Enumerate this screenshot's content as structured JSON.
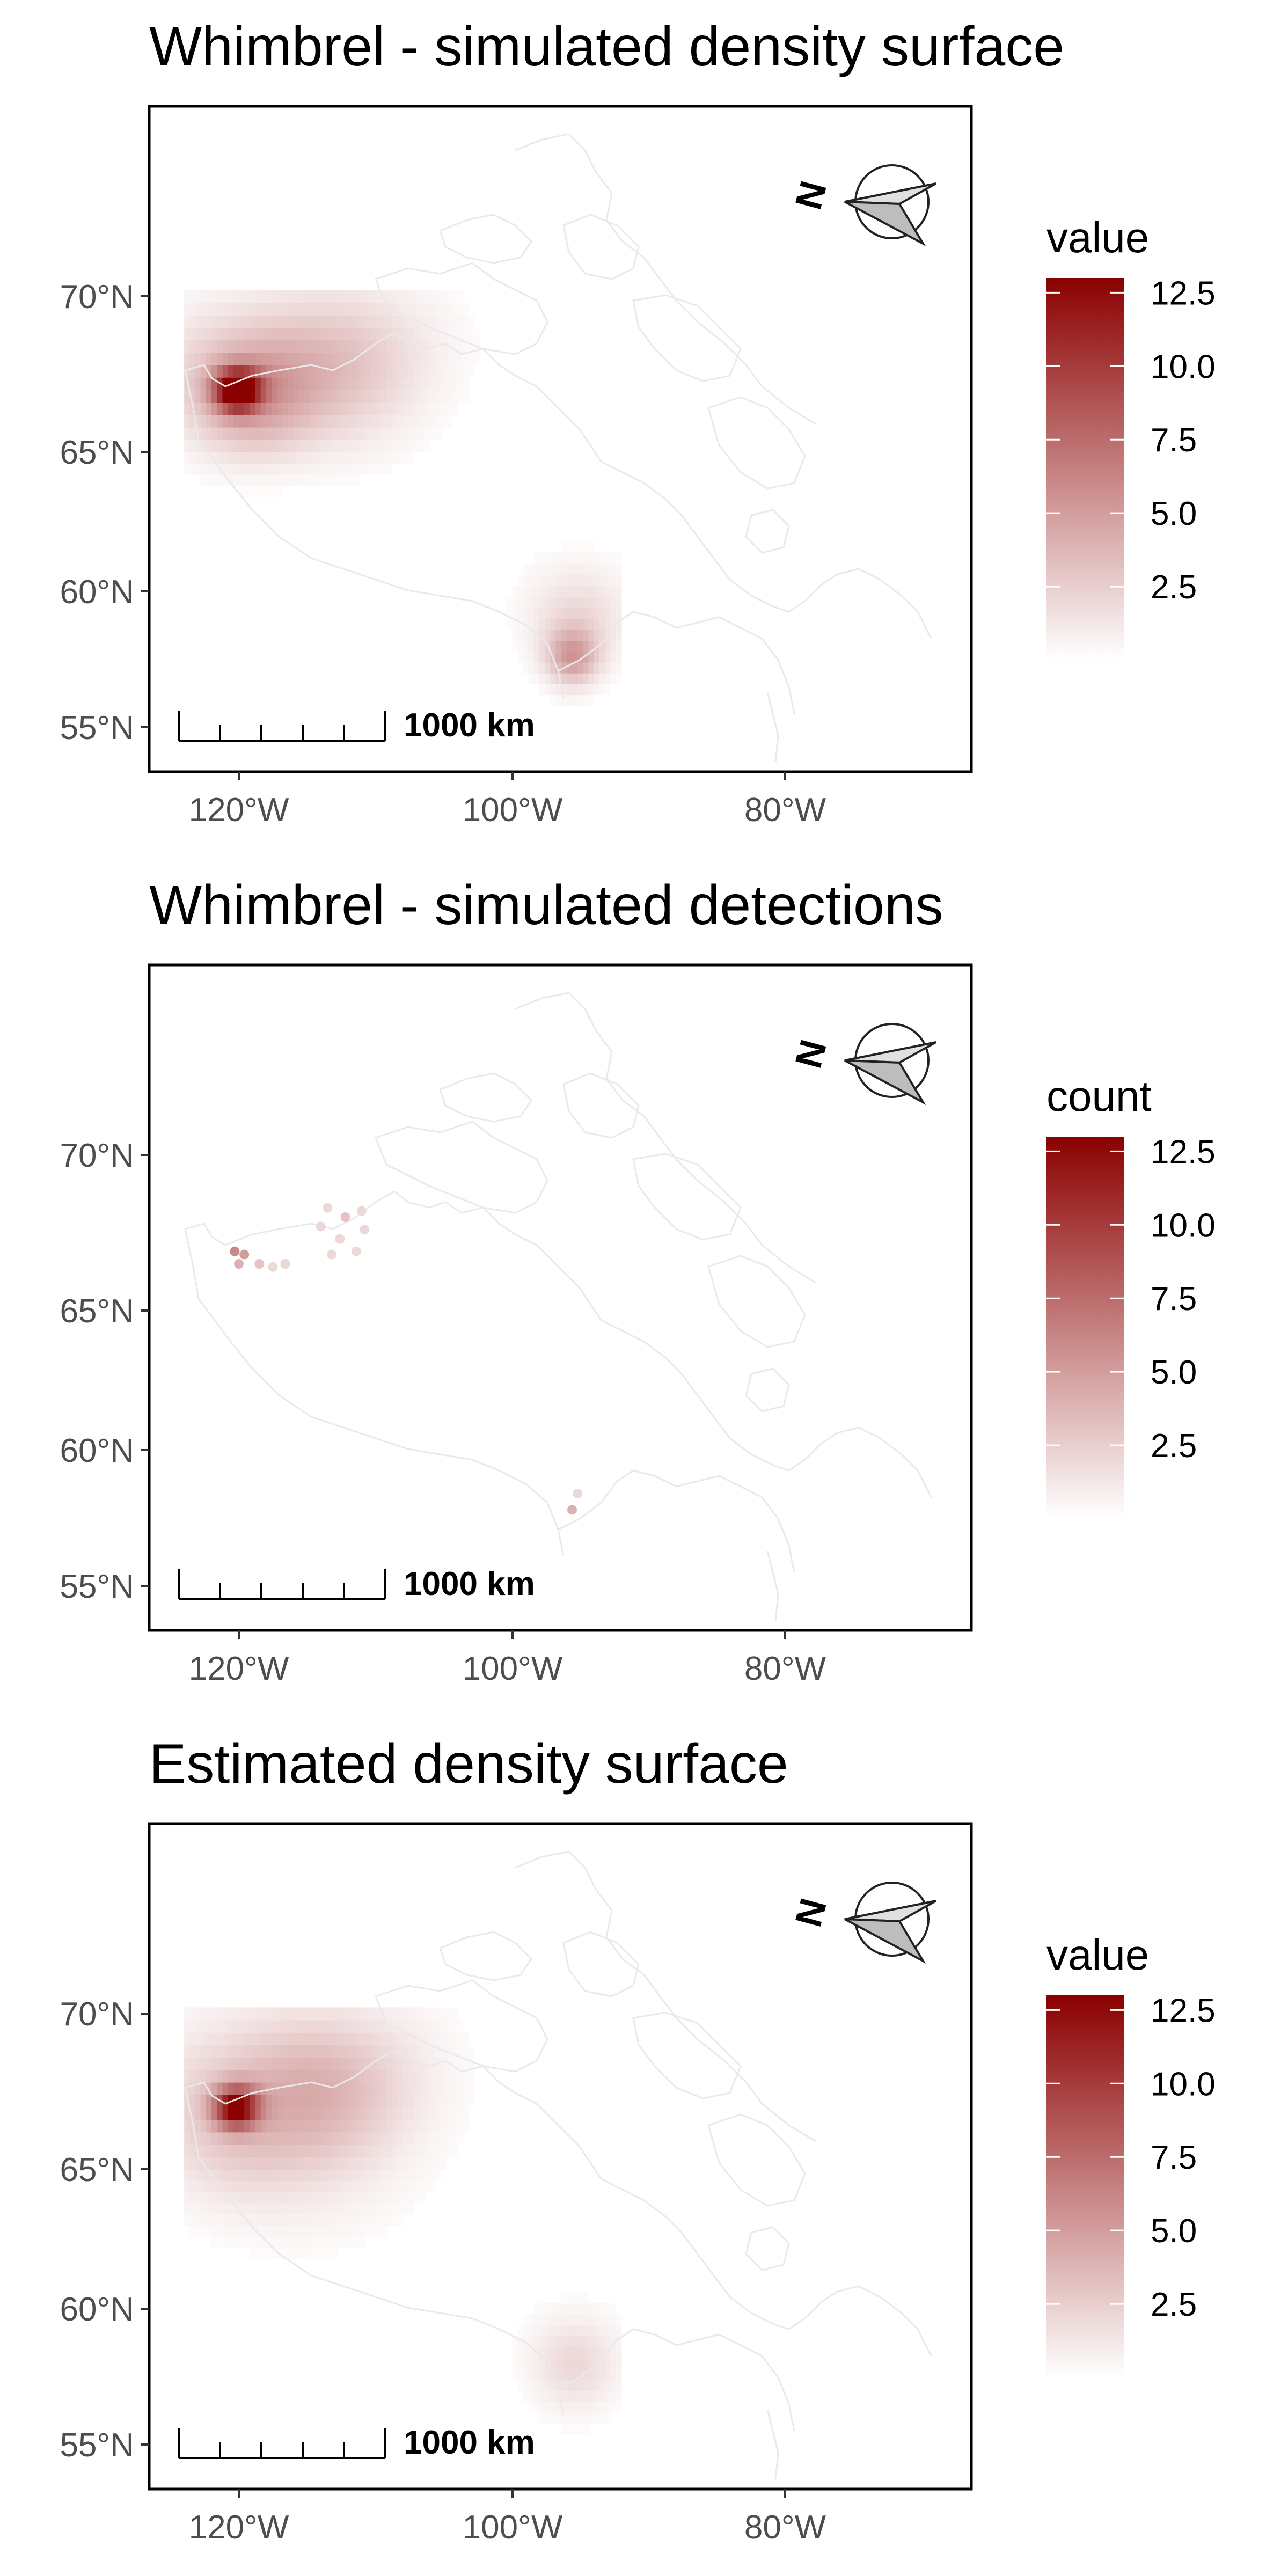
{
  "colors": {
    "low": "#ffffff",
    "high": "#8b0000",
    "coast": "#e9e9e9",
    "frame": "#000000",
    "tick_text": "#4d4d4d"
  },
  "panels": [
    {
      "title": "Whimbrel - simulated density surface",
      "legend_title": "value",
      "kind": "surface",
      "hotspots": [
        {
          "lon": -120.3,
          "lat": 66.8,
          "value": 12.5,
          "spread": 0.45
        },
        {
          "lon": -119.2,
          "lat": 66.6,
          "value": 4.0,
          "spread": 1.3
        },
        {
          "lon": -121.5,
          "lat": 67.4,
          "value": 1.2,
          "spread": 1.6
        },
        {
          "lon": -112.8,
          "lat": 67.6,
          "value": 3.0,
          "spread": 1.7
        },
        {
          "lon": -95.8,
          "lat": 57.4,
          "value": 4.5,
          "spread": 0.7
        },
        {
          "lon": -95.4,
          "lat": 58.8,
          "value": 2.0,
          "spread": 1.3
        }
      ]
    },
    {
      "title": "Whimbrel - simulated detections",
      "legend_title": "count",
      "kind": "points",
      "points": [
        {
          "lon": -120.3,
          "lat": 66.9,
          "value": 6
        },
        {
          "lon": -119.6,
          "lat": 66.8,
          "value": 5
        },
        {
          "lon": -120.0,
          "lat": 66.5,
          "value": 4
        },
        {
          "lon": -118.5,
          "lat": 66.5,
          "value": 3
        },
        {
          "lon": -117.5,
          "lat": 66.4,
          "value": 2
        },
        {
          "lon": -116.6,
          "lat": 66.5,
          "value": 2
        },
        {
          "lon": -113.5,
          "lat": 68.3,
          "value": 2
        },
        {
          "lon": -112.2,
          "lat": 68.0,
          "value": 3
        },
        {
          "lon": -111.0,
          "lat": 68.2,
          "value": 2
        },
        {
          "lon": -114.0,
          "lat": 67.7,
          "value": 2
        },
        {
          "lon": -112.6,
          "lat": 67.3,
          "value": 2
        },
        {
          "lon": -110.8,
          "lat": 67.6,
          "value": 2
        },
        {
          "lon": -111.4,
          "lat": 66.9,
          "value": 2
        },
        {
          "lon": -113.2,
          "lat": 66.8,
          "value": 2
        },
        {
          "lon": -95.2,
          "lat": 58.4,
          "value": 2
        },
        {
          "lon": -95.6,
          "lat": 57.8,
          "value": 4
        }
      ]
    },
    {
      "title": "Estimated density surface",
      "legend_title": "value",
      "kind": "surface",
      "hotspots": [
        {
          "lon": -120.4,
          "lat": 66.8,
          "value": 11.0,
          "spread": 0.45
        },
        {
          "lon": -120.5,
          "lat": 66.5,
          "value": 2.5,
          "spread": 1.8
        },
        {
          "lon": -115.0,
          "lat": 65.5,
          "value": 0.8,
          "spread": 2.4
        },
        {
          "lon": -113.5,
          "lat": 67.5,
          "value": 2.8,
          "spread": 1.7
        },
        {
          "lon": -95.6,
          "lat": 57.8,
          "value": 2.0,
          "spread": 1.2
        }
      ]
    }
  ],
  "axes": {
    "lat_ticks": [
      {
        "value": 70,
        "label": "70°N"
      },
      {
        "value": 65,
        "label": "65°N"
      },
      {
        "value": 60,
        "label": "60°N"
      },
      {
        "value": 55,
        "label": "55°N"
      }
    ],
    "lon_ticks": [
      {
        "value": -120,
        "label": "120°W"
      },
      {
        "value": -100,
        "label": "100°W"
      },
      {
        "value": -80,
        "label": "80°W"
      }
    ],
    "lon_range": [
      -126.5,
      -66.5
    ],
    "lat_range": [
      54,
      76.5
    ]
  },
  "legend": {
    "range": [
      0,
      13
    ],
    "ticks": [
      {
        "value": 12.5,
        "label": "12.5"
      },
      {
        "value": 10.0,
        "label": "10.0"
      },
      {
        "value": 7.5,
        "label": "7.5"
      },
      {
        "value": 5.0,
        "label": "5.0"
      },
      {
        "value": 2.5,
        "label": "2.5"
      }
    ]
  },
  "scale_bar": {
    "label": "1000 km"
  },
  "north_arrow": {
    "label": "N"
  }
}
